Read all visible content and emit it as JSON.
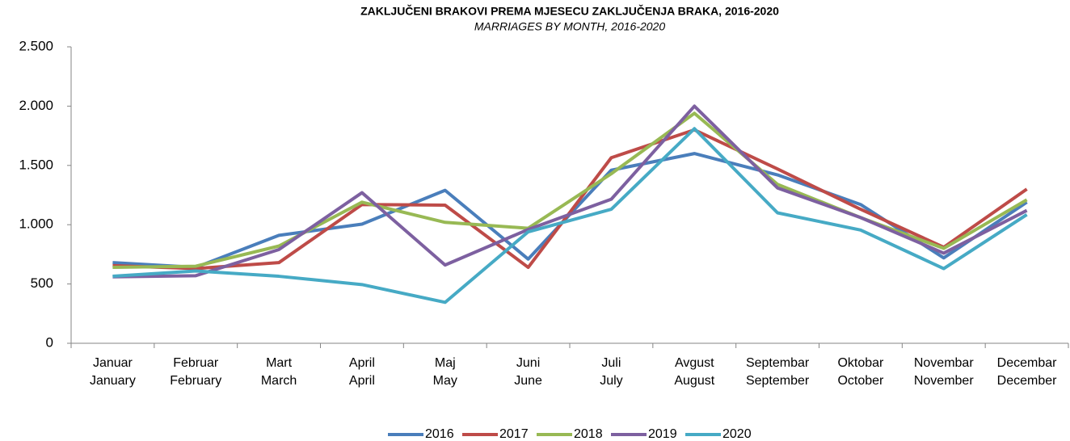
{
  "chart_data": {
    "type": "line",
    "title": "ZAKLJUČENI BRAKOVI PREMA MJESECU ZAKLJUČENJA BRAKA, 2016-2020",
    "subtitle": "MARRIAGES BY MONTH, 2016-2020",
    "categories": [
      [
        "Januar",
        "January"
      ],
      [
        "Februar",
        "February"
      ],
      [
        "Mart",
        "March"
      ],
      [
        "April",
        "April"
      ],
      [
        "Maj",
        "May"
      ],
      [
        "Juni",
        "June"
      ],
      [
        "Juli",
        "July"
      ],
      [
        "Avgust",
        "August"
      ],
      [
        "Septembar",
        "September"
      ],
      [
        "Oktobar",
        "October"
      ],
      [
        "Novembar",
        "November"
      ],
      [
        "Decembar",
        "December"
      ]
    ],
    "series": [
      {
        "name": "2016",
        "color": "#4a7ebb",
        "values": [
          680,
          640,
          910,
          1005,
          1290,
          710,
          1460,
          1600,
          1420,
          1170,
          720,
          1190
        ]
      },
      {
        "name": "2017",
        "color": "#be4b48",
        "values": [
          655,
          630,
          680,
          1170,
          1165,
          640,
          1565,
          1800,
          1470,
          1130,
          810,
          1300
        ]
      },
      {
        "name": "2018",
        "color": "#98b954",
        "values": [
          640,
          650,
          820,
          1190,
          1020,
          970,
          1430,
          1940,
          1340,
          1060,
          800,
          1210
        ]
      },
      {
        "name": "2019",
        "color": "#7d60a0",
        "values": [
          560,
          570,
          790,
          1270,
          660,
          960,
          1215,
          2000,
          1310,
          1060,
          760,
          1120
        ]
      },
      {
        "name": "2020",
        "color": "#46aac5",
        "values": [
          565,
          610,
          565,
          495,
          345,
          940,
          1130,
          1810,
          1100,
          955,
          630,
          1085
        ]
      }
    ],
    "ylim": [
      0,
      2500
    ],
    "yticks": [
      0,
      500,
      {
        "value": 1000,
        "label": "1.000"
      },
      {
        "value": 1500,
        "label": "1.500"
      },
      {
        "value": 2000,
        "label": "2.000"
      },
      {
        "value": 2500,
        "label": "2.500"
      }
    ],
    "legend": "bottom"
  }
}
